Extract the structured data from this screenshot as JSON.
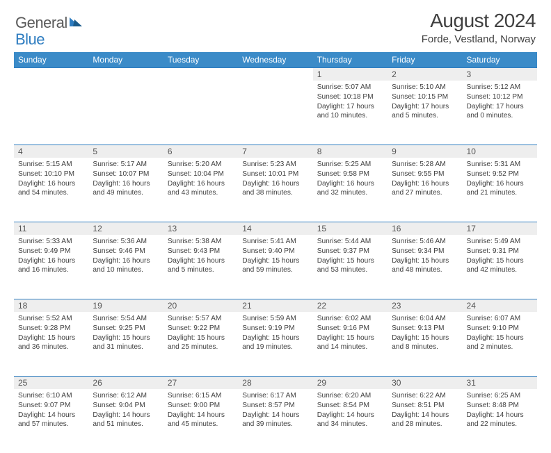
{
  "brand": {
    "part1": "General",
    "part2": "Blue"
  },
  "title": "August 2024",
  "location": "Forde, Vestland, Norway",
  "colors": {
    "header_bg": "#3b8bc8",
    "daynum_bg": "#eeeeee",
    "accent_line": "#2d7cc0",
    "text": "#404040"
  },
  "weekdays": [
    "Sunday",
    "Monday",
    "Tuesday",
    "Wednesday",
    "Thursday",
    "Friday",
    "Saturday"
  ],
  "weeks": [
    [
      null,
      null,
      null,
      null,
      {
        "n": "1",
        "sr": "5:07 AM",
        "ss": "10:18 PM",
        "dl": "17 hours and 10 minutes."
      },
      {
        "n": "2",
        "sr": "5:10 AM",
        "ss": "10:15 PM",
        "dl": "17 hours and 5 minutes."
      },
      {
        "n": "3",
        "sr": "5:12 AM",
        "ss": "10:12 PM",
        "dl": "17 hours and 0 minutes."
      }
    ],
    [
      {
        "n": "4",
        "sr": "5:15 AM",
        "ss": "10:10 PM",
        "dl": "16 hours and 54 minutes."
      },
      {
        "n": "5",
        "sr": "5:17 AM",
        "ss": "10:07 PM",
        "dl": "16 hours and 49 minutes."
      },
      {
        "n": "6",
        "sr": "5:20 AM",
        "ss": "10:04 PM",
        "dl": "16 hours and 43 minutes."
      },
      {
        "n": "7",
        "sr": "5:23 AM",
        "ss": "10:01 PM",
        "dl": "16 hours and 38 minutes."
      },
      {
        "n": "8",
        "sr": "5:25 AM",
        "ss": "9:58 PM",
        "dl": "16 hours and 32 minutes."
      },
      {
        "n": "9",
        "sr": "5:28 AM",
        "ss": "9:55 PM",
        "dl": "16 hours and 27 minutes."
      },
      {
        "n": "10",
        "sr": "5:31 AM",
        "ss": "9:52 PM",
        "dl": "16 hours and 21 minutes."
      }
    ],
    [
      {
        "n": "11",
        "sr": "5:33 AM",
        "ss": "9:49 PM",
        "dl": "16 hours and 16 minutes."
      },
      {
        "n": "12",
        "sr": "5:36 AM",
        "ss": "9:46 PM",
        "dl": "16 hours and 10 minutes."
      },
      {
        "n": "13",
        "sr": "5:38 AM",
        "ss": "9:43 PM",
        "dl": "16 hours and 5 minutes."
      },
      {
        "n": "14",
        "sr": "5:41 AM",
        "ss": "9:40 PM",
        "dl": "15 hours and 59 minutes."
      },
      {
        "n": "15",
        "sr": "5:44 AM",
        "ss": "9:37 PM",
        "dl": "15 hours and 53 minutes."
      },
      {
        "n": "16",
        "sr": "5:46 AM",
        "ss": "9:34 PM",
        "dl": "15 hours and 48 minutes."
      },
      {
        "n": "17",
        "sr": "5:49 AM",
        "ss": "9:31 PM",
        "dl": "15 hours and 42 minutes."
      }
    ],
    [
      {
        "n": "18",
        "sr": "5:52 AM",
        "ss": "9:28 PM",
        "dl": "15 hours and 36 minutes."
      },
      {
        "n": "19",
        "sr": "5:54 AM",
        "ss": "9:25 PM",
        "dl": "15 hours and 31 minutes."
      },
      {
        "n": "20",
        "sr": "5:57 AM",
        "ss": "9:22 PM",
        "dl": "15 hours and 25 minutes."
      },
      {
        "n": "21",
        "sr": "5:59 AM",
        "ss": "9:19 PM",
        "dl": "15 hours and 19 minutes."
      },
      {
        "n": "22",
        "sr": "6:02 AM",
        "ss": "9:16 PM",
        "dl": "15 hours and 14 minutes."
      },
      {
        "n": "23",
        "sr": "6:04 AM",
        "ss": "9:13 PM",
        "dl": "15 hours and 8 minutes."
      },
      {
        "n": "24",
        "sr": "6:07 AM",
        "ss": "9:10 PM",
        "dl": "15 hours and 2 minutes."
      }
    ],
    [
      {
        "n": "25",
        "sr": "6:10 AM",
        "ss": "9:07 PM",
        "dl": "14 hours and 57 minutes."
      },
      {
        "n": "26",
        "sr": "6:12 AM",
        "ss": "9:04 PM",
        "dl": "14 hours and 51 minutes."
      },
      {
        "n": "27",
        "sr": "6:15 AM",
        "ss": "9:00 PM",
        "dl": "14 hours and 45 minutes."
      },
      {
        "n": "28",
        "sr": "6:17 AM",
        "ss": "8:57 PM",
        "dl": "14 hours and 39 minutes."
      },
      {
        "n": "29",
        "sr": "6:20 AM",
        "ss": "8:54 PM",
        "dl": "14 hours and 34 minutes."
      },
      {
        "n": "30",
        "sr": "6:22 AM",
        "ss": "8:51 PM",
        "dl": "14 hours and 28 minutes."
      },
      {
        "n": "31",
        "sr": "6:25 AM",
        "ss": "8:48 PM",
        "dl": "14 hours and 22 minutes."
      }
    ]
  ],
  "labels": {
    "sunrise": "Sunrise: ",
    "sunset": "Sunset: ",
    "daylight": "Daylight: "
  }
}
